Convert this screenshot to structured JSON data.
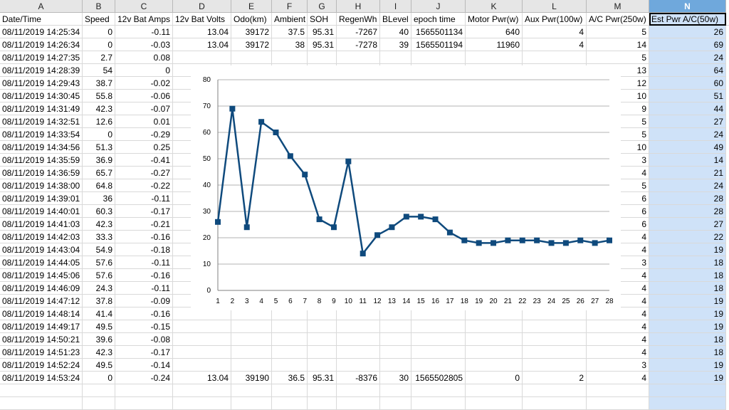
{
  "columns": [
    {
      "letter": "A",
      "header": "Date/Time"
    },
    {
      "letter": "B",
      "header": "Speed"
    },
    {
      "letter": "C",
      "header": "12v Bat Amps"
    },
    {
      "letter": "D",
      "header": "12v Bat Volts"
    },
    {
      "letter": "E",
      "header": "Odo(km)"
    },
    {
      "letter": "F",
      "header": "Ambient"
    },
    {
      "letter": "G",
      "header": "SOH"
    },
    {
      "letter": "H",
      "header": "RegenWh"
    },
    {
      "letter": "I",
      "header": "BLevel"
    },
    {
      "letter": "J",
      "header": "epoch time"
    },
    {
      "letter": "K",
      "header": "Motor Pwr(w)"
    },
    {
      "letter": "L",
      "header": "Aux Pwr(100w)"
    },
    {
      "letter": "M",
      "header": "A/C Pwr(250w)"
    },
    {
      "letter": "N",
      "header": "Est Pwr A/C(50w)"
    }
  ],
  "overflow_header": "E",
  "rows": [
    {
      "A": "08/11/2019 14:25:34",
      "B": "0",
      "C": "-0.11",
      "D": "13.04",
      "E": "39172",
      "F": "37.5",
      "G": "95.31",
      "H": "-7267",
      "I": "40",
      "J": "1565501134",
      "K": "640",
      "L": "4",
      "M": "5",
      "N": "26"
    },
    {
      "A": "08/11/2019 14:26:34",
      "B": "0",
      "C": "-0.03",
      "D": "13.04",
      "E": "39172",
      "F": "38",
      "G": "95.31",
      "H": "-7278",
      "I": "39",
      "J": "1565501194",
      "K": "11960",
      "L": "4",
      "M": "14",
      "N": "69"
    },
    {
      "A": "08/11/2019 14:27:35",
      "B": "2.7",
      "C": "0.08",
      "D": "",
      "E": "",
      "F": "",
      "G": "",
      "H": "",
      "I": "",
      "J": "",
      "K": "",
      "L": "",
      "M": "5",
      "N": "24"
    },
    {
      "A": "08/11/2019 14:28:39",
      "B": "54",
      "C": "0",
      "D": "",
      "E": "",
      "F": "",
      "G": "",
      "H": "",
      "I": "",
      "J": "",
      "K": "",
      "L": "",
      "M": "13",
      "N": "64"
    },
    {
      "A": "08/11/2019 14:29:43",
      "B": "38.7",
      "C": "-0.02",
      "D": "",
      "E": "",
      "F": "",
      "G": "",
      "H": "",
      "I": "",
      "J": "",
      "K": "",
      "L": "",
      "M": "12",
      "N": "60"
    },
    {
      "A": "08/11/2019 14:30:45",
      "B": "55.8",
      "C": "-0.06",
      "D": "",
      "E": "",
      "F": "",
      "G": "",
      "H": "",
      "I": "",
      "J": "",
      "K": "",
      "L": "",
      "M": "10",
      "N": "51"
    },
    {
      "A": "08/11/2019 14:31:49",
      "B": "42.3",
      "C": "-0.07",
      "D": "",
      "E": "",
      "F": "",
      "G": "",
      "H": "",
      "I": "",
      "J": "",
      "K": "",
      "L": "",
      "M": "9",
      "N": "44"
    },
    {
      "A": "08/11/2019 14:32:51",
      "B": "12.6",
      "C": "0.01",
      "D": "",
      "E": "",
      "F": "",
      "G": "",
      "H": "",
      "I": "",
      "J": "",
      "K": "",
      "L": "",
      "M": "5",
      "N": "27"
    },
    {
      "A": "08/11/2019 14:33:54",
      "B": "0",
      "C": "-0.29",
      "D": "",
      "E": "",
      "F": "",
      "G": "",
      "H": "",
      "I": "",
      "J": "",
      "K": "",
      "L": "",
      "M": "5",
      "N": "24"
    },
    {
      "A": "08/11/2019 14:34:56",
      "B": "51.3",
      "C": "0.25",
      "D": "",
      "E": "",
      "F": "",
      "G": "",
      "H": "",
      "I": "",
      "J": "",
      "K": "",
      "L": "",
      "M": "10",
      "N": "49"
    },
    {
      "A": "08/11/2019 14:35:59",
      "B": "36.9",
      "C": "-0.41",
      "D": "",
      "E": "",
      "F": "",
      "G": "",
      "H": "",
      "I": "",
      "J": "",
      "K": "",
      "L": "",
      "M": "3",
      "N": "14"
    },
    {
      "A": "08/11/2019 14:36:59",
      "B": "65.7",
      "C": "-0.27",
      "D": "",
      "E": "",
      "F": "",
      "G": "",
      "H": "",
      "I": "",
      "J": "",
      "K": "",
      "L": "",
      "M": "4",
      "N": "21"
    },
    {
      "A": "08/11/2019 14:38:00",
      "B": "64.8",
      "C": "-0.22",
      "D": "",
      "E": "",
      "F": "",
      "G": "",
      "H": "",
      "I": "",
      "J": "",
      "K": "",
      "L": "",
      "M": "5",
      "N": "24"
    },
    {
      "A": "08/11/2019 14:39:01",
      "B": "36",
      "C": "-0.11",
      "D": "",
      "E": "",
      "F": "",
      "G": "",
      "H": "",
      "I": "",
      "J": "",
      "K": "",
      "L": "",
      "M": "6",
      "N": "28"
    },
    {
      "A": "08/11/2019 14:40:01",
      "B": "60.3",
      "C": "-0.17",
      "D": "",
      "E": "",
      "F": "",
      "G": "",
      "H": "",
      "I": "",
      "J": "",
      "K": "",
      "L": "",
      "M": "6",
      "N": "28"
    },
    {
      "A": "08/11/2019 14:41:03",
      "B": "42.3",
      "C": "-0.21",
      "D": "",
      "E": "",
      "F": "",
      "G": "",
      "H": "",
      "I": "",
      "J": "",
      "K": "",
      "L": "",
      "M": "6",
      "N": "27"
    },
    {
      "A": "08/11/2019 14:42:03",
      "B": "33.3",
      "C": "-0.16",
      "D": "",
      "E": "",
      "F": "",
      "G": "",
      "H": "",
      "I": "",
      "J": "",
      "K": "",
      "L": "",
      "M": "4",
      "N": "22"
    },
    {
      "A": "08/11/2019 14:43:04",
      "B": "54.9",
      "C": "-0.18",
      "D": "",
      "E": "",
      "F": "",
      "G": "",
      "H": "",
      "I": "",
      "J": "",
      "K": "",
      "L": "",
      "M": "4",
      "N": "19"
    },
    {
      "A": "08/11/2019 14:44:05",
      "B": "57.6",
      "C": "-0.11",
      "D": "",
      "E": "",
      "F": "",
      "G": "",
      "H": "",
      "I": "",
      "J": "",
      "K": "",
      "L": "",
      "M": "3",
      "N": "18"
    },
    {
      "A": "08/11/2019 14:45:06",
      "B": "57.6",
      "C": "-0.16",
      "D": "",
      "E": "",
      "F": "",
      "G": "",
      "H": "",
      "I": "",
      "J": "",
      "K": "",
      "L": "",
      "M": "4",
      "N": "18"
    },
    {
      "A": "08/11/2019 14:46:09",
      "B": "24.3",
      "C": "-0.11",
      "D": "",
      "E": "",
      "F": "",
      "G": "",
      "H": "",
      "I": "",
      "J": "",
      "K": "",
      "L": "",
      "M": "4",
      "N": "18"
    },
    {
      "A": "08/11/2019 14:47:12",
      "B": "37.8",
      "C": "-0.09",
      "D": "",
      "E": "",
      "F": "",
      "G": "",
      "H": "",
      "I": "",
      "J": "",
      "K": "",
      "L": "",
      "M": "4",
      "N": "19"
    },
    {
      "A": "08/11/2019 14:48:14",
      "B": "41.4",
      "C": "-0.16",
      "D": "",
      "E": "",
      "F": "",
      "G": "",
      "H": "",
      "I": "",
      "J": "",
      "K": "",
      "L": "",
      "M": "4",
      "N": "19"
    },
    {
      "A": "08/11/2019 14:49:17",
      "B": "49.5",
      "C": "-0.15",
      "D": "",
      "E": "",
      "F": "",
      "G": "",
      "H": "",
      "I": "",
      "J": "",
      "K": "",
      "L": "",
      "M": "4",
      "N": "19"
    },
    {
      "A": "08/11/2019 14:50:21",
      "B": "39.6",
      "C": "-0.08",
      "D": "",
      "E": "",
      "F": "",
      "G": "",
      "H": "",
      "I": "",
      "J": "",
      "K": "",
      "L": "",
      "M": "4",
      "N": "18"
    },
    {
      "A": "08/11/2019 14:51:23",
      "B": "42.3",
      "C": "-0.17",
      "D": "",
      "E": "",
      "F": "",
      "G": "",
      "H": "",
      "I": "",
      "J": "",
      "K": "",
      "L": "",
      "M": "4",
      "N": "18"
    },
    {
      "A": "08/11/2019 14:52:24",
      "B": "49.5",
      "C": "-0.14",
      "D": "",
      "E": "",
      "F": "",
      "G": "",
      "H": "",
      "I": "",
      "J": "",
      "K": "",
      "L": "",
      "M": "3",
      "N": "19"
    },
    {
      "A": "08/11/2019 14:53:24",
      "B": "0",
      "C": "-0.24",
      "D": "13.04",
      "E": "39190",
      "F": "36.5",
      "G": "95.31",
      "H": "-8376",
      "I": "30",
      "J": "1565502805",
      "K": "0",
      "L": "2",
      "M": "4",
      "N": "19"
    }
  ],
  "colors": {
    "series": "#0f4a7d",
    "grid": "#b3b3b3",
    "selection": "#cfe2f8",
    "selected_header": "#6fa8dc"
  },
  "chart_data": {
    "type": "line",
    "title": "",
    "xlabel": "",
    "ylabel": "",
    "categories": [
      "1",
      "2",
      "3",
      "4",
      "5",
      "6",
      "7",
      "8",
      "9",
      "10",
      "11",
      "12",
      "13",
      "14",
      "15",
      "16",
      "17",
      "18",
      "19",
      "20",
      "21",
      "22",
      "23",
      "24",
      "25",
      "26",
      "27",
      "28"
    ],
    "series": [
      {
        "name": "Est Pwr A/C(50w)",
        "values": [
          26,
          69,
          24,
          64,
          60,
          51,
          44,
          27,
          24,
          49,
          14,
          21,
          24,
          28,
          28,
          27,
          22,
          19,
          18,
          18,
          19,
          19,
          19,
          18,
          18,
          19,
          18,
          19
        ]
      }
    ],
    "ylim": [
      0,
      80
    ],
    "yticks": [
      "0",
      "10",
      "20",
      "30",
      "40",
      "50",
      "60",
      "70",
      "80"
    ],
    "grid": true,
    "legend": "none"
  }
}
